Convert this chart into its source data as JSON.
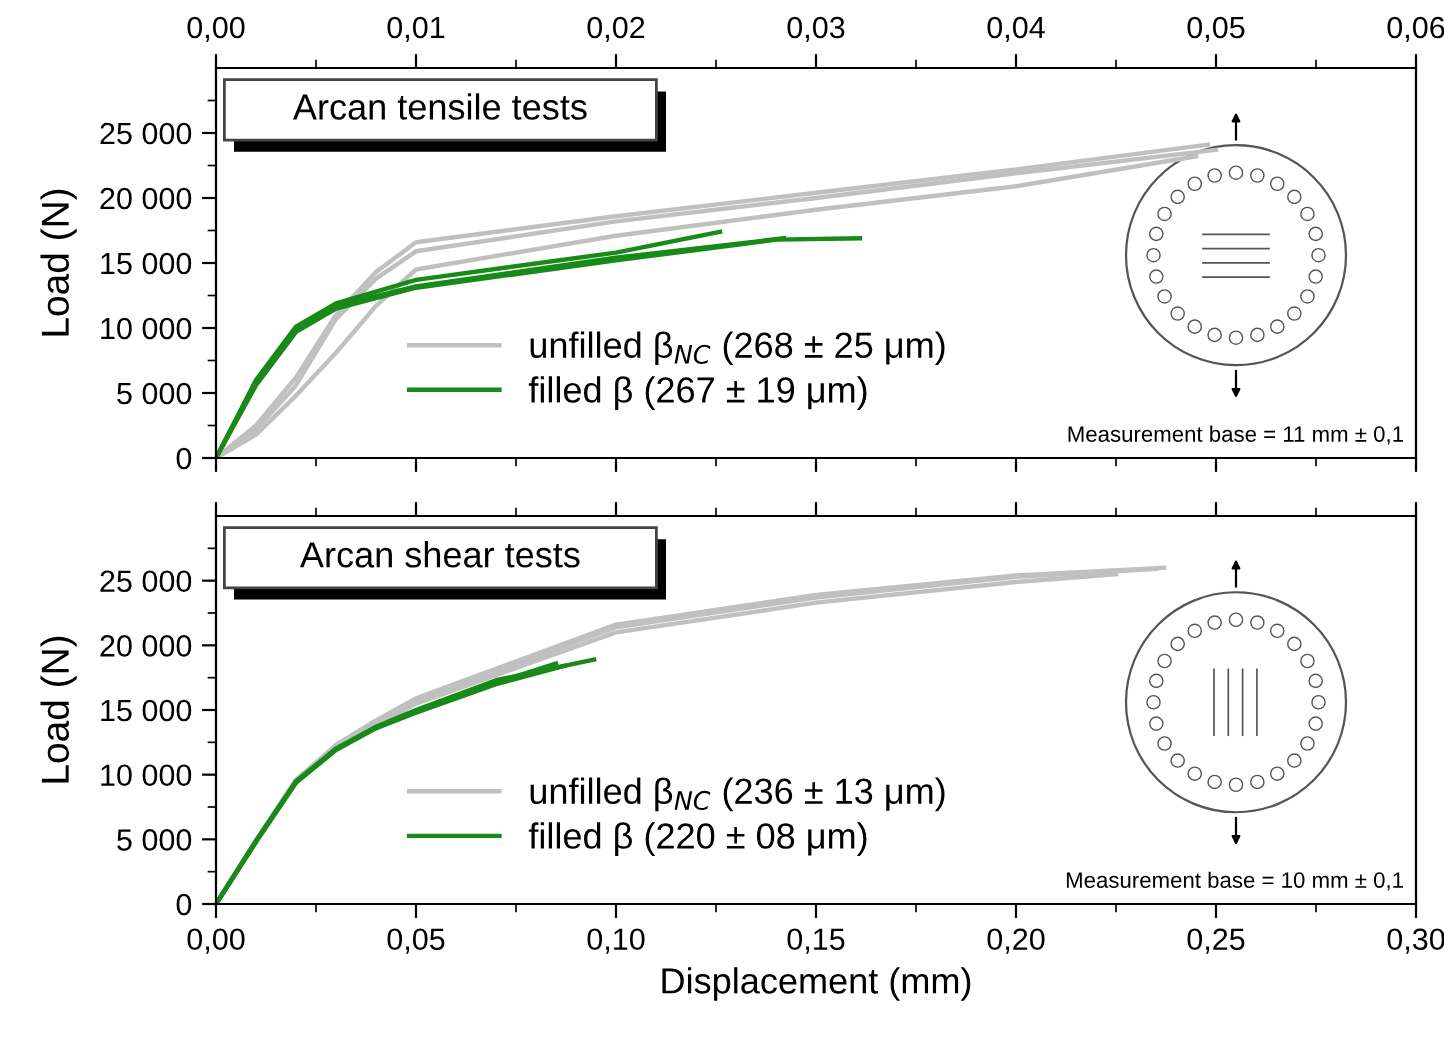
{
  "chart_data": [
    {
      "type": "line",
      "title": "Arcan tensile tests",
      "ylabel": "Load (N)",
      "xlim": [
        0,
        0.06
      ],
      "xticks": [
        {
          "value": 0,
          "label": "0,00"
        },
        {
          "value": 0.01,
          "label": "0,01"
        },
        {
          "value": 0.02,
          "label": "0,02"
        },
        {
          "value": 0.03,
          "label": "0,03"
        },
        {
          "value": 0.04,
          "label": "0,04"
        },
        {
          "value": 0.05,
          "label": "0,05"
        },
        {
          "value": 0.06,
          "label": "0,06"
        }
      ],
      "ylim": [
        0,
        30000
      ],
      "yticks": [
        0,
        {
          "value": 5000,
          "label": "5 000"
        },
        {
          "value": 10000,
          "label": "10 000"
        },
        {
          "value": 15000,
          "label": "15 000"
        },
        {
          "value": 20000,
          "label": "20 000"
        },
        {
          "value": 25000,
          "label": "25 000"
        }
      ],
      "legend": "bottom",
      "annotations": [
        "Measurement base = 11 mm ± 0,1"
      ],
      "series": [
        {
          "name": "unfilled β$_{NC}$ (268 ± 25 μm)",
          "color": "#c0c0c0",
          "x": [
            0,
            0.002,
            0.004,
            0.006,
            0.008,
            0.01,
            0.02,
            0.03,
            0.04,
            0.0496
          ],
          "values": [
            0,
            2500,
            6200,
            11000,
            14300,
            16600,
            18600,
            20400,
            22200,
            24100
          ]
        },
        {
          "color": "#c0c0c0",
          "x": [
            0,
            0.002,
            0.004,
            0.006,
            0.008,
            0.01,
            0.02,
            0.03,
            0.04,
            0.05
          ],
          "values": [
            0,
            2200,
            5600,
            10700,
            13800,
            15900,
            18200,
            20000,
            21900,
            23700
          ]
        },
        {
          "color": "#c0c0c0",
          "x": [
            0,
            0.002,
            0.004,
            0.006,
            0.008,
            0.01,
            0.02,
            0.03,
            0.04,
            0.049
          ],
          "values": [
            0,
            1800,
            4800,
            8100,
            11700,
            14500,
            17100,
            19100,
            20900,
            23200
          ]
        },
        {
          "name": "filled β (267 ± 19 μm)",
          "color": "#178a17",
          "x": [
            0,
            0.002,
            0.004,
            0.006,
            0.01,
            0.02,
            0.0252
          ],
          "values": [
            0,
            6000,
            10100,
            11900,
            13700,
            15800,
            17400
          ]
        },
        {
          "color": "#178a17",
          "x": [
            0,
            0.002,
            0.004,
            0.006,
            0.01,
            0.02,
            0.0284
          ],
          "values": [
            0,
            5800,
            9900,
            11700,
            13200,
            15400,
            16900
          ]
        },
        {
          "color": "#178a17",
          "x": [
            0,
            0.002,
            0.004,
            0.006,
            0.01,
            0.02,
            0.028,
            0.0322
          ],
          "values": [
            0,
            5600,
            9700,
            11500,
            13100,
            15200,
            16800,
            16900
          ]
        }
      ]
    },
    {
      "type": "line",
      "title": "Arcan shear tests",
      "ylabel": "Load (N)",
      "xlabel": "Displacement (mm)",
      "xlim": [
        0,
        0.3
      ],
      "xticks": [
        {
          "value": 0,
          "label": "0,00"
        },
        {
          "value": 0.05,
          "label": "0,05"
        },
        {
          "value": 0.1,
          "label": "0,10"
        },
        {
          "value": 0.15,
          "label": "0,15"
        },
        {
          "value": 0.2,
          "label": "0,20"
        },
        {
          "value": 0.25,
          "label": "0,25"
        },
        {
          "value": 0.3,
          "label": "0,30"
        }
      ],
      "ylim": [
        0,
        30000
      ],
      "yticks": [
        0,
        {
          "value": 5000,
          "label": "5 000"
        },
        {
          "value": 10000,
          "label": "10 000"
        },
        {
          "value": 15000,
          "label": "15 000"
        },
        {
          "value": 20000,
          "label": "20 000"
        },
        {
          "value": 25000,
          "label": "25 000"
        }
      ],
      "legend": "bottom",
      "annotations": [
        "Measurement base = 10 mm ± 0,1"
      ],
      "series": [
        {
          "name": "unfilled β$_{NC}$ (236 ± 13 μm)",
          "color": "#c0c0c0",
          "x": [
            0,
            0.01,
            0.02,
            0.03,
            0.04,
            0.05,
            0.1,
            0.15,
            0.2,
            0.237
          ],
          "values": [
            0,
            4900,
            9600,
            12300,
            14200,
            15900,
            21600,
            23900,
            25400,
            26000
          ]
        },
        {
          "color": "#c0c0c0",
          "x": [
            0,
            0.01,
            0.02,
            0.03,
            0.04,
            0.05,
            0.1,
            0.15,
            0.2,
            0.235
          ],
          "values": [
            0,
            4900,
            9600,
            12100,
            13900,
            15700,
            21400,
            23700,
            25300,
            25900
          ]
        },
        {
          "color": "#c0c0c0",
          "x": [
            0,
            0.01,
            0.02,
            0.03,
            0.04,
            0.05,
            0.1,
            0.15,
            0.2,
            0.225
          ],
          "values": [
            0,
            4900,
            9500,
            12000,
            13800,
            15500,
            21000,
            23300,
            24900,
            25500
          ]
        },
        {
          "name": "filled β (220 ± 08 μm)",
          "color": "#178a17",
          "x": [
            0,
            0.01,
            0.02,
            0.03,
            0.04,
            0.05,
            0.07,
            0.0945
          ],
          "values": [
            0,
            4900,
            9500,
            12000,
            13700,
            15000,
            17300,
            18900
          ]
        },
        {
          "color": "#178a17",
          "x": [
            0,
            0.01,
            0.02,
            0.03,
            0.04,
            0.05,
            0.07,
            0.087
          ],
          "values": [
            0,
            4800,
            9400,
            11900,
            13600,
            14800,
            17000,
            18400
          ]
        },
        {
          "color": "#178a17",
          "x": [
            0,
            0.01,
            0.02,
            0.03,
            0.04,
            0.05,
            0.07,
            0.085
          ],
          "values": [
            0,
            4800,
            9400,
            12000,
            13600,
            14900,
            17100,
            18600
          ]
        }
      ]
    }
  ]
}
